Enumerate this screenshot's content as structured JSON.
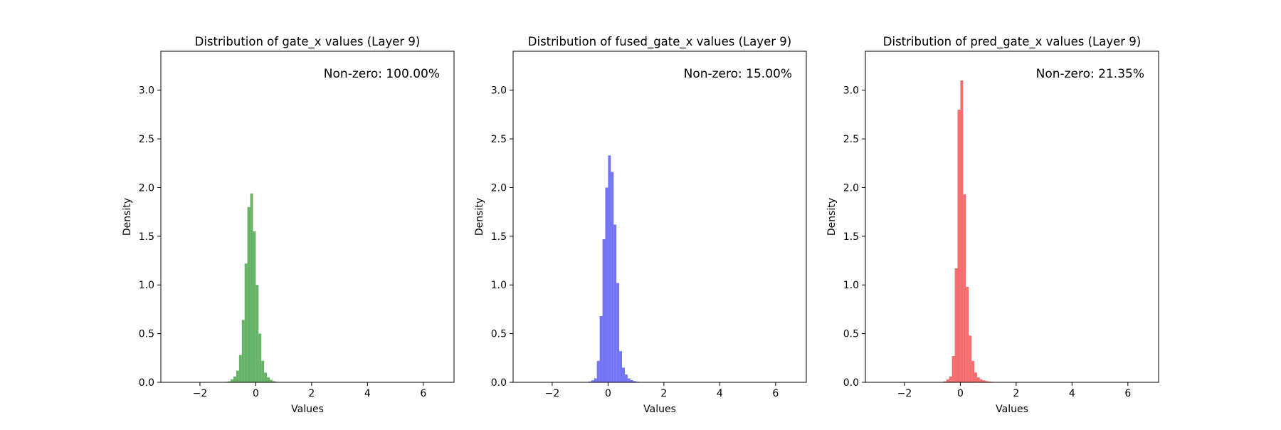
{
  "chart_data": [
    {
      "type": "bar",
      "title": "Distribution of gate_x values (Layer 9)",
      "xlabel": "Values",
      "ylabel": "Density",
      "annotation": "Non-zero: 100.00%",
      "color": "#4CA64C",
      "xlim": [
        -3.4,
        7.1
      ],
      "ylim": [
        0,
        3.4
      ],
      "xticks": [
        -2,
        0,
        2,
        4,
        6
      ],
      "xtick_labels": [
        "−2",
        "0",
        "2",
        "4",
        "6"
      ],
      "yticks": [
        0.0,
        0.5,
        1.0,
        1.5,
        2.0,
        2.5,
        3.0
      ],
      "ytick_labels": [
        "0.0",
        "0.5",
        "1.0",
        "1.5",
        "2.0",
        "2.5",
        "3.0"
      ],
      "bin_width": 0.1,
      "bins": [
        [
          -1.2,
          0.003
        ],
        [
          -1.1,
          0.005
        ],
        [
          -1.0,
          0.01
        ],
        [
          -0.9,
          0.03
        ],
        [
          -0.8,
          0.06
        ],
        [
          -0.7,
          0.12
        ],
        [
          -0.6,
          0.28
        ],
        [
          -0.5,
          0.64
        ],
        [
          -0.4,
          1.22
        ],
        [
          -0.3,
          1.8
        ],
        [
          -0.2,
          1.94
        ],
        [
          -0.1,
          1.55
        ],
        [
          0.0,
          1.0
        ],
        [
          0.1,
          0.5
        ],
        [
          0.2,
          0.22
        ],
        [
          0.3,
          0.1
        ],
        [
          0.4,
          0.05
        ],
        [
          0.5,
          0.025
        ],
        [
          0.6,
          0.012
        ],
        [
          0.7,
          0.006
        ],
        [
          0.8,
          0.003
        ]
      ]
    },
    {
      "type": "bar",
      "title": "Distribution of fused_gate_x values (Layer 9)",
      "xlabel": "Values",
      "ylabel": "Density",
      "annotation": "Non-zero: 15.00%",
      "color": "#5A5AF5",
      "xlim": [
        -3.4,
        7.1
      ],
      "ylim": [
        0,
        3.4
      ],
      "xticks": [
        -2,
        0,
        2,
        4,
        6
      ],
      "xtick_labels": [
        "−2",
        "0",
        "2",
        "4",
        "6"
      ],
      "yticks": [
        0.0,
        0.5,
        1.0,
        1.5,
        2.0,
        2.5,
        3.0
      ],
      "ytick_labels": [
        "0.0",
        "0.5",
        "1.0",
        "1.5",
        "2.0",
        "2.5",
        "3.0"
      ],
      "bin_width": 0.1,
      "bins": [
        [
          -0.8,
          0.003
        ],
        [
          -0.7,
          0.008
        ],
        [
          -0.6,
          0.02
        ],
        [
          -0.5,
          0.04
        ],
        [
          -0.4,
          0.22
        ],
        [
          -0.3,
          0.68
        ],
        [
          -0.2,
          1.47
        ],
        [
          -0.1,
          2.0
        ],
        [
          0.0,
          2.33
        ],
        [
          0.1,
          2.16
        ],
        [
          0.2,
          1.62
        ],
        [
          0.3,
          1.02
        ],
        [
          0.4,
          0.32
        ],
        [
          0.5,
          0.15
        ],
        [
          0.6,
          0.08
        ],
        [
          0.7,
          0.04
        ],
        [
          0.8,
          0.022
        ],
        [
          0.9,
          0.012
        ],
        [
          1.0,
          0.006
        ],
        [
          1.1,
          0.004
        ],
        [
          1.2,
          0.002
        ],
        [
          1.3,
          0.001
        ]
      ]
    },
    {
      "type": "bar",
      "title": "Distribution of pred_gate_x values (Layer 9)",
      "xlabel": "Values",
      "ylabel": "Density",
      "annotation": "Non-zero: 21.35%",
      "color": "#F25555",
      "xlim": [
        -3.4,
        7.1
      ],
      "ylim": [
        0,
        3.4
      ],
      "xticks": [
        -2,
        0,
        2,
        4,
        6
      ],
      "xtick_labels": [
        "−2",
        "0",
        "2",
        "4",
        "6"
      ],
      "yticks": [
        0.0,
        0.5,
        1.0,
        1.5,
        2.0,
        2.5,
        3.0
      ],
      "ytick_labels": [
        "0.0",
        "0.5",
        "1.0",
        "1.5",
        "2.0",
        "2.5",
        "3.0"
      ],
      "bin_width": 0.1,
      "bins": [
        [
          -0.7,
          0.004
        ],
        [
          -0.6,
          0.01
        ],
        [
          -0.5,
          0.03
        ],
        [
          -0.4,
          0.06
        ],
        [
          -0.3,
          0.27
        ],
        [
          -0.2,
          1.17
        ],
        [
          -0.1,
          2.8
        ],
        [
          0.0,
          3.1
        ],
        [
          0.1,
          1.93
        ],
        [
          0.2,
          0.98
        ],
        [
          0.3,
          0.48
        ],
        [
          0.4,
          0.22
        ],
        [
          0.5,
          0.1
        ],
        [
          0.6,
          0.05
        ],
        [
          0.7,
          0.03
        ],
        [
          0.8,
          0.02
        ],
        [
          0.9,
          0.012
        ],
        [
          1.0,
          0.008
        ],
        [
          1.1,
          0.005
        ],
        [
          1.2,
          0.003
        ],
        [
          1.3,
          0.002
        ],
        [
          1.4,
          0.001
        ]
      ]
    }
  ]
}
